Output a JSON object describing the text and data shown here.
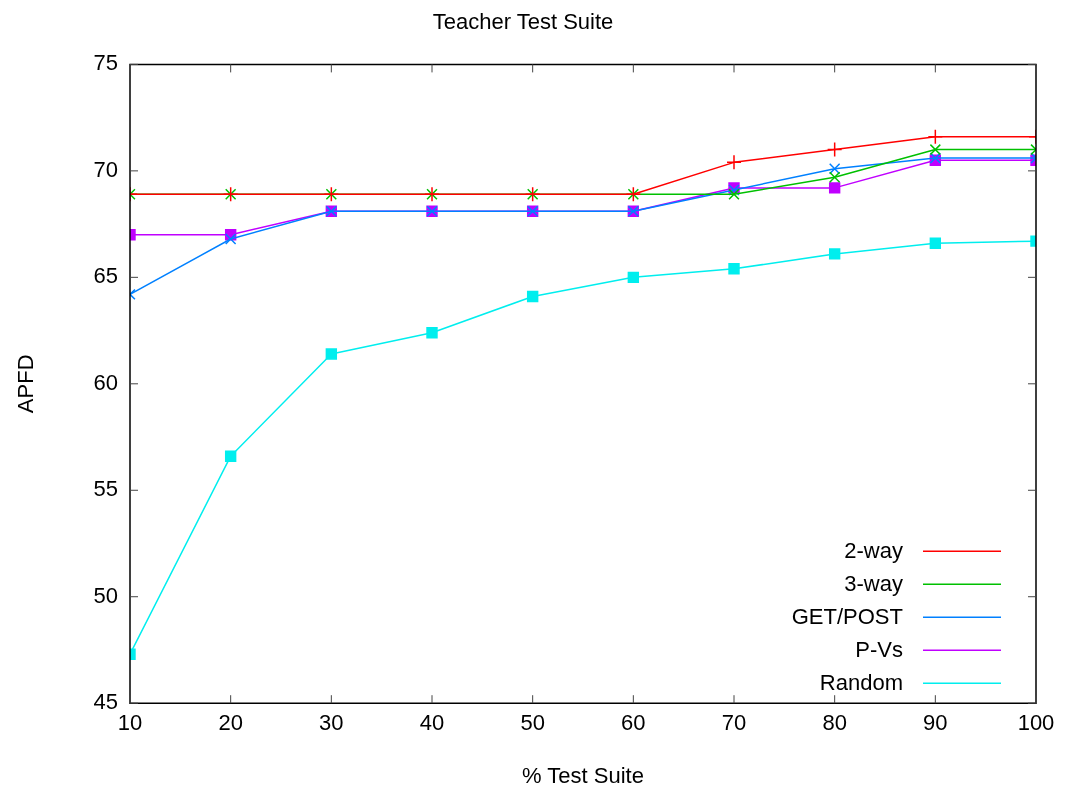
{
  "chart_data": {
    "type": "line",
    "title": "Teacher Test Suite",
    "xlabel": "% Test Suite",
    "ylabel": "APFD",
    "x": [
      10,
      20,
      30,
      40,
      50,
      60,
      70,
      80,
      90,
      100
    ],
    "xlim": [
      10,
      100
    ],
    "xticks": [
      10,
      20,
      30,
      40,
      50,
      60,
      70,
      80,
      90,
      100
    ],
    "ylim": [
      45,
      75
    ],
    "yticks": [
      45,
      50,
      55,
      60,
      65,
      70,
      75
    ],
    "grid": false,
    "legend": "bottom right",
    "line_style": "solid",
    "series": [
      {
        "name": "2-way",
        "color": "#ff0000",
        "marker": "plus",
        "values": [
          68.9,
          68.9,
          68.9,
          68.9,
          68.9,
          68.9,
          70.4,
          71.0,
          71.6,
          71.6
        ]
      },
      {
        "name": "3-way",
        "color": "#00c000",
        "marker": "cross",
        "values": [
          68.9,
          68.9,
          68.9,
          68.9,
          68.9,
          68.9,
          68.9,
          69.7,
          71.0,
          71.0
        ]
      },
      {
        "name": "GET/POST",
        "color": "#0080ff",
        "marker": "cross",
        "values": [
          64.2,
          66.8,
          68.1,
          68.1,
          68.1,
          68.1,
          69.1,
          70.1,
          70.6,
          70.6
        ]
      },
      {
        "name": "P-Vs",
        "color": "#c000ff",
        "marker": "square",
        "values": [
          67.0,
          67.0,
          68.1,
          68.1,
          68.1,
          68.1,
          69.2,
          69.2,
          70.5,
          70.5
        ]
      },
      {
        "name": "Random",
        "color": "#00eeee",
        "marker": "square",
        "values": [
          47.3,
          56.6,
          61.4,
          62.4,
          64.1,
          65.0,
          65.4,
          66.1,
          66.6,
          66.7
        ]
      }
    ]
  }
}
